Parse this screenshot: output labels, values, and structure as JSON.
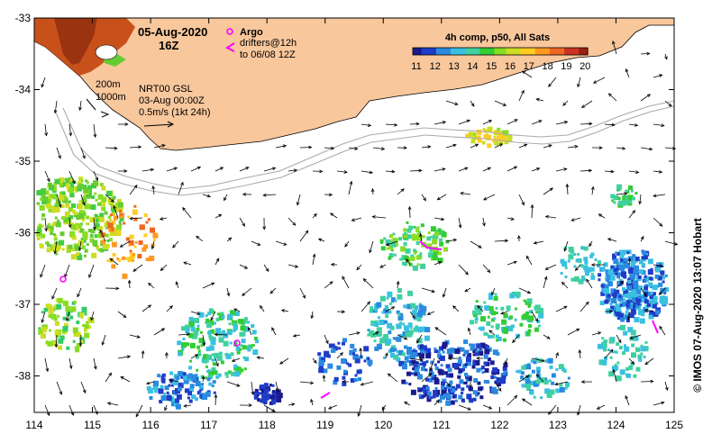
{
  "header": {
    "date": "05-Aug-2020",
    "time": "16Z",
    "argo_label": "Argo",
    "drifters_line1": "drifters@12h",
    "drifters_line2": "to 06/08 12Z"
  },
  "colorbar": {
    "title": "4h comp, p50, All Sats",
    "ticks": [
      "11",
      "12",
      "13",
      "14",
      "15",
      "16",
      "17",
      "18",
      "19",
      "20"
    ]
  },
  "annotations": {
    "isobath_200": "200m",
    "isobath_1000": "1000m",
    "product": "NRT00 GSL",
    "product_date": "03-Aug 00:00Z",
    "scale": "0.5m/s (1kt 24h)"
  },
  "axes": {
    "lon_ticks": [
      "114",
      "115",
      "116",
      "117",
      "118",
      "119",
      "120",
      "121",
      "122",
      "123",
      "124",
      "125"
    ],
    "lat_ticks": [
      "-33",
      "-34",
      "-35",
      "-36",
      "-37",
      "-38"
    ]
  },
  "credit": "© IMOS 07-Aug-2020 13:07 Hobart",
  "colors": {
    "land": "#f8c79c",
    "argo": "#ff00ff",
    "arrow": "#000000"
  }
}
